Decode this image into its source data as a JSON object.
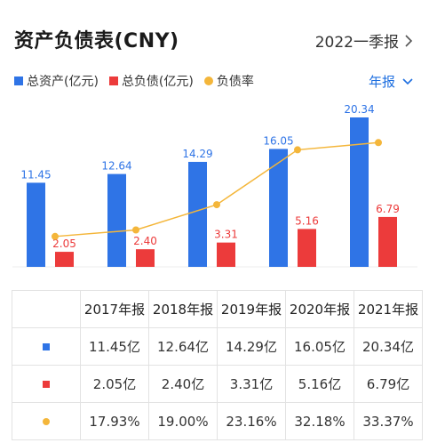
{
  "header": {
    "title": "资产负债表(CNY)",
    "period": "2022一季报"
  },
  "legend": {
    "assets": "总资产(亿元)",
    "liabilities": "总负债(亿元)",
    "ratio": "负债率"
  },
  "frequency": "年报",
  "colors": {
    "assets": "#2f74e6",
    "liabilities": "#ec3b3b",
    "ratio": "#f4b63a",
    "accent": "#1e6fe0"
  },
  "chart_data": {
    "type": "bar",
    "categories": [
      "2017年报",
      "2018年报",
      "2019年报",
      "2020年报",
      "2021年报"
    ],
    "series": [
      {
        "name": "总资产(亿元)",
        "type": "bar",
        "values": [
          11.45,
          12.64,
          14.29,
          16.05,
          20.34
        ]
      },
      {
        "name": "总负债(亿元)",
        "type": "bar",
        "values": [
          2.05,
          2.4,
          3.31,
          5.16,
          6.79
        ]
      },
      {
        "name": "负债率",
        "type": "line",
        "values": [
          17.93,
          19.0,
          23.16,
          32.18,
          33.37
        ]
      }
    ],
    "bar_labels": {
      "assets": [
        "11.45",
        "12.64",
        "14.29",
        "16.05",
        "20.34"
      ],
      "liabilities": [
        "2.05",
        "2.40",
        "3.31",
        "5.16",
        "6.79"
      ]
    },
    "legend_position": "top-left",
    "grid": false
  },
  "table": {
    "headers": [
      "2017年报",
      "2018年报",
      "2019年报",
      "2020年报",
      "2021年报"
    ],
    "rows": [
      {
        "marker": "assets",
        "values": [
          "11.45亿",
          "12.64亿",
          "14.29亿",
          "16.05亿",
          "20.34亿"
        ]
      },
      {
        "marker": "liabilities",
        "values": [
          "2.05亿",
          "2.40亿",
          "3.31亿",
          "5.16亿",
          "6.79亿"
        ]
      },
      {
        "marker": "ratio",
        "values": [
          "17.93%",
          "19.00%",
          "23.16%",
          "32.18%",
          "33.37%"
        ]
      }
    ]
  }
}
